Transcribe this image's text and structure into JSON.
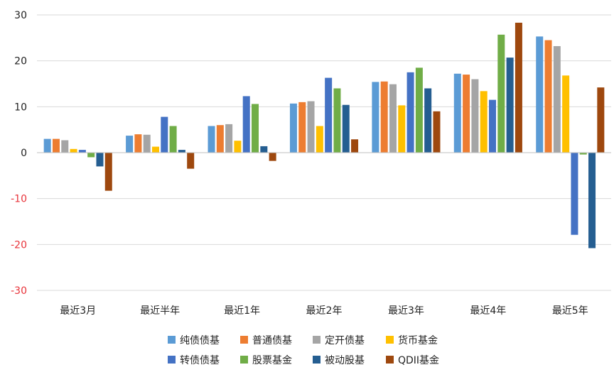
{
  "chart_data": {
    "type": "bar",
    "categories": [
      "最近3月",
      "最近半年",
      "最近1年",
      "最近2年",
      "最近3年",
      "最近4年",
      "最近5年"
    ],
    "series": [
      {
        "name": "纯债债基",
        "color": "#5B9BD5",
        "values": [
          3.0,
          3.7,
          5.8,
          10.7,
          15.4,
          17.2,
          25.3
        ]
      },
      {
        "name": "普通债基",
        "color": "#ED7D31",
        "values": [
          3.0,
          4.0,
          6.0,
          11.0,
          15.5,
          17.0,
          24.5
        ]
      },
      {
        "name": "定开债基",
        "color": "#A5A5A5",
        "values": [
          2.7,
          3.9,
          6.2,
          11.2,
          14.9,
          16.0,
          23.2
        ]
      },
      {
        "name": "货币基金",
        "color": "#FFC000",
        "values": [
          0.8,
          1.3,
          2.6,
          5.8,
          10.3,
          13.4,
          16.8
        ]
      },
      {
        "name": "转债债基",
        "color": "#4472C4",
        "values": [
          0.6,
          7.8,
          12.3,
          16.3,
          17.5,
          11.5,
          -17.9
        ]
      },
      {
        "name": "股票基金",
        "color": "#70AD47",
        "values": [
          -1.0,
          5.8,
          10.6,
          14.0,
          18.5,
          25.7,
          -0.4
        ]
      },
      {
        "name": "被动股基",
        "color": "#255E91",
        "values": [
          -3.0,
          0.6,
          1.4,
          10.4,
          14.0,
          20.7,
          -20.8
        ]
      },
      {
        "name": "QDII基金",
        "color": "#9E480E",
        "values": [
          -8.3,
          -3.5,
          -1.8,
          2.9,
          9.0,
          28.3,
          14.2
        ]
      }
    ],
    "ylim": [
      -30,
      30
    ],
    "yticks": [
      "30",
      "20",
      "10",
      "0",
      "-10",
      "-20",
      "-30"
    ],
    "ytick_values": [
      30,
      20,
      10,
      0,
      -10,
      -20,
      -30
    ],
    "positive_tick_color": "#222222",
    "negative_tick_color": "#E8333A",
    "grid": true,
    "legend_position": "bottom"
  }
}
